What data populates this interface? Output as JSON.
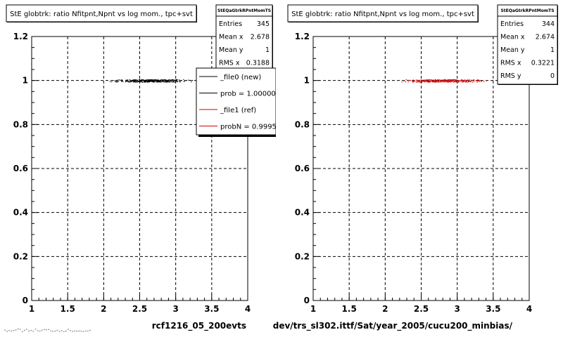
{
  "chart_data": [
    {
      "type": "scatter",
      "title": "StE globtrk: ratio Nfitpnt,Npnt vs log mom., tpc+svt",
      "xlabel": "rcf1216_05_200evts",
      "ylabel": "",
      "xlim": [
        1,
        4
      ],
      "ylim": [
        0,
        1.2
      ],
      "x_ticks": [
        "1",
        "1.5",
        "2",
        "2.5",
        "3",
        "3.5",
        "4"
      ],
      "y_ticks": [
        "0",
        "0.2",
        "0.4",
        "0.6",
        "0.8",
        "1",
        "1.2"
      ],
      "grid": true,
      "points": {
        "x_range": [
          2.0,
          3.35
        ],
        "y": 1,
        "count": 345,
        "color": "#000000"
      },
      "stats": {
        "name": "StEQaGtrkRPntMomTS",
        "rows": [
          {
            "label": "Entries",
            "value": "345"
          },
          {
            "label": "Mean x",
            "value": "2.678"
          },
          {
            "label": "Mean y",
            "value": "1"
          },
          {
            "label": "RMS x",
            "value": "0.3188"
          }
        ]
      },
      "legend": {
        "placement": "top-right",
        "entries": [
          {
            "label": "_file0 (new)",
            "color": "#000000"
          },
          {
            "label": "prob = 1.000000",
            "color": "#000000"
          },
          {
            "label": "_file1 (ref)",
            "color": "#cc0000"
          },
          {
            "label": "probN = 0.999531",
            "color": "#cc0000"
          }
        ]
      }
    },
    {
      "type": "scatter",
      "title": "StE globtrk: ratio Nfitpnt,Npnt vs log mom., tpc+svt",
      "xlabel": "dev/trs_sl302.ittf/Sat/year_2005/cucu200_minbias/",
      "ylabel": "",
      "xlim": [
        1,
        4
      ],
      "ylim": [
        0,
        1.2
      ],
      "x_ticks": [
        "1",
        "1.5",
        "2",
        "2.5",
        "3",
        "3.5",
        "4"
      ],
      "y_ticks": [
        "0",
        "0.2",
        "0.4",
        "0.6",
        "0.8",
        "1",
        "1.2"
      ],
      "grid": true,
      "points": {
        "x_range": [
          2.05,
          3.55
        ],
        "y": 1,
        "count": 344,
        "color": "#cc0000"
      },
      "stats": {
        "name": "StEQaGtrkRPntMomTS",
        "rows": [
          {
            "label": "Entries",
            "value": "344"
          },
          {
            "label": "Mean x",
            "value": "2.674"
          },
          {
            "label": "Mean y",
            "value": "1"
          },
          {
            "label": "RMS x",
            "value": "0.3221"
          },
          {
            "label": "RMS y",
            "value": "0"
          }
        ]
      }
    }
  ]
}
